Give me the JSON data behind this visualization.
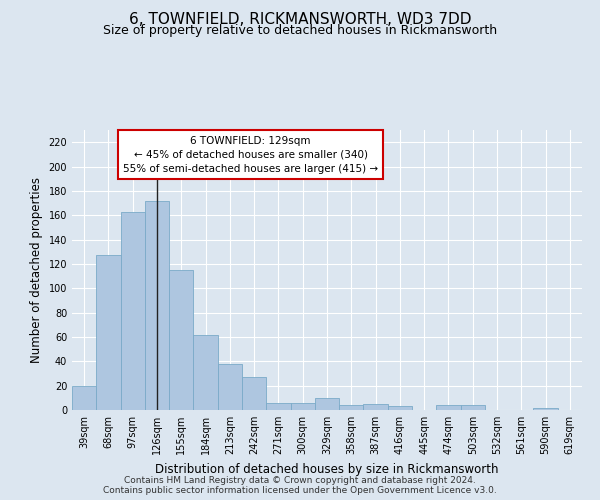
{
  "title": "6, TOWNFIELD, RICKMANSWORTH, WD3 7DD",
  "subtitle": "Size of property relative to detached houses in Rickmansworth",
  "xlabel": "Distribution of detached houses by size in Rickmansworth",
  "ylabel": "Number of detached properties",
  "footer_line1": "Contains HM Land Registry data © Crown copyright and database right 2024.",
  "footer_line2": "Contains public sector information licensed under the Open Government Licence v3.0.",
  "categories": [
    "39sqm",
    "68sqm",
    "97sqm",
    "126sqm",
    "155sqm",
    "184sqm",
    "213sqm",
    "242sqm",
    "271sqm",
    "300sqm",
    "329sqm",
    "358sqm",
    "387sqm",
    "416sqm",
    "445sqm",
    "474sqm",
    "503sqm",
    "532sqm",
    "561sqm",
    "590sqm",
    "619sqm"
  ],
  "values": [
    20,
    127,
    163,
    172,
    115,
    62,
    38,
    27,
    6,
    6,
    10,
    4,
    5,
    3,
    0,
    4,
    4,
    0,
    0,
    2,
    0
  ],
  "bar_color": "#aec6e0",
  "bar_edge_color": "#7aaac8",
  "vline_index": 3,
  "vline_color": "#222222",
  "annotation_line1": "6 TOWNFIELD: 129sqm",
  "annotation_line2": "← 45% of detached houses are smaller (340)",
  "annotation_line3": "55% of semi-detached houses are larger (415) →",
  "annotation_box_facecolor": "#ffffff",
  "annotation_box_edgecolor": "#cc0000",
  "ylim": [
    0,
    230
  ],
  "yticks": [
    0,
    20,
    40,
    60,
    80,
    100,
    120,
    140,
    160,
    180,
    200,
    220
  ],
  "background_color": "#dce6f0",
  "grid_color": "#ffffff",
  "title_fontsize": 11,
  "subtitle_fontsize": 9,
  "axis_label_fontsize": 8.5,
  "tick_fontsize": 7,
  "footer_fontsize": 6.5,
  "annotation_fontsize": 7.5
}
